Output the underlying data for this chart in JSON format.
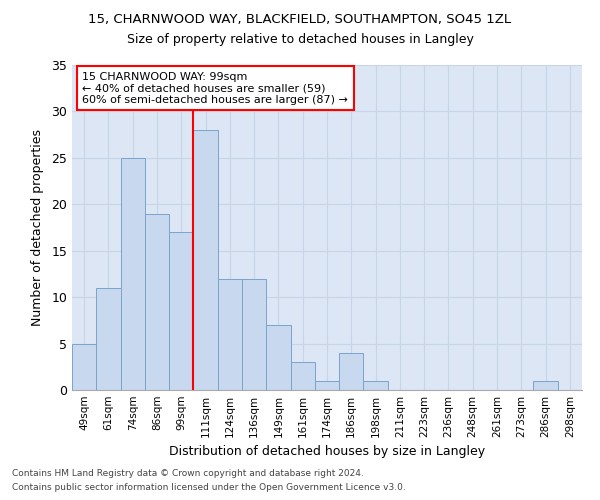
{
  "title1": "15, CHARNWOOD WAY, BLACKFIELD, SOUTHAMPTON, SO45 1ZL",
  "title2": "Size of property relative to detached houses in Langley",
  "xlabel": "Distribution of detached houses by size in Langley",
  "ylabel": "Number of detached properties",
  "categories": [
    "49sqm",
    "61sqm",
    "74sqm",
    "86sqm",
    "99sqm",
    "111sqm",
    "124sqm",
    "136sqm",
    "149sqm",
    "161sqm",
    "174sqm",
    "186sqm",
    "198sqm",
    "211sqm",
    "223sqm",
    "236sqm",
    "248sqm",
    "261sqm",
    "273sqm",
    "286sqm",
    "298sqm"
  ],
  "values": [
    5,
    11,
    25,
    19,
    17,
    28,
    12,
    12,
    7,
    3,
    1,
    4,
    1,
    0,
    0,
    0,
    0,
    0,
    0,
    1,
    0
  ],
  "bar_color": "#c8d8ef",
  "bar_edgecolor": "#7aa4cc",
  "redline_x": 4.5,
  "annotation_line1": "15 CHARNWOOD WAY: 99sqm",
  "annotation_line2": "← 40% of detached houses are smaller (59)",
  "annotation_line3": "60% of semi-detached houses are larger (87) →",
  "annotation_box_edgecolor": "red",
  "redline_color": "red",
  "grid_color": "#c8d4e8",
  "bg_color": "#dce6f5",
  "footer1": "Contains HM Land Registry data © Crown copyright and database right 2024.",
  "footer2": "Contains public sector information licensed under the Open Government Licence v3.0.",
  "ylim": [
    0,
    35
  ],
  "yticks": [
    0,
    5,
    10,
    15,
    20,
    25,
    30,
    35
  ]
}
